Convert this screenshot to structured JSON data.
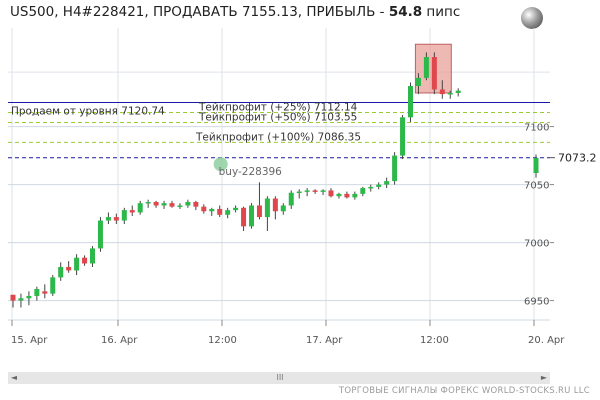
{
  "header": {
    "title_prefix": "US500, H4#228421, ПРОДАВАТЬ 7155.13, ПРИБЫЛЬ - ",
    "profit_value": "54.8",
    "profit_unit": " пипс"
  },
  "icons": {
    "globe": "globe-icon"
  },
  "colors": {
    "up": "#2db84a",
    "down": "#e0474c",
    "sell_line": "#1a1aa6",
    "tp_line": "#9acd32",
    "price_line": "#1a1aa6",
    "zone": "#e8a09a"
  },
  "chart_data": {
    "type": "candlestick",
    "symbol": "US500",
    "ylim": [
      6935,
      7185
    ],
    "x_labels": [
      "15. Apr",
      "16. Apr",
      "12:00",
      "17. Apr",
      "12:00",
      "20. Apr"
    ],
    "y_ticks": [
      7100,
      7050,
      7000,
      6950
    ],
    "sell_level": {
      "label": "Продаем от уровня 7120.74",
      "value": 7120.74
    },
    "take_profits": [
      {
        "label": "Тейкпрофит (+25%) 7112.14",
        "value": 7112.14
      },
      {
        "label": "Тейкпрофит (+50%) 7103.55",
        "value": 7103.55
      },
      {
        "label": "Тейкпрофит (+100%) 7086.35",
        "value": 7086.35
      }
    ],
    "current_price": {
      "label": "7073.2",
      "value": 7073.2
    },
    "marker": {
      "label": "buy-228396",
      "value": 7065
    },
    "candles": [
      [
        6955,
        6955,
        6944,
        6950
      ],
      [
        6950,
        6956,
        6944,
        6952
      ],
      [
        6952,
        6958,
        6946,
        6954
      ],
      [
        6954,
        6962,
        6950,
        6960
      ],
      [
        6958,
        6964,
        6952,
        6956
      ],
      [
        6956,
        6972,
        6954,
        6970
      ],
      [
        6970,
        6983,
        6967,
        6979
      ],
      [
        6979,
        6984,
        6974,
        6976
      ],
      [
        6976,
        6990,
        6972,
        6987
      ],
      [
        6987,
        6989,
        6980,
        6982
      ],
      [
        6982,
        6997,
        6979,
        6995
      ],
      [
        6995,
        7022,
        6992,
        7019
      ],
      [
        7019,
        7026,
        7016,
        7022
      ],
      [
        7022,
        7025,
        7016,
        7019
      ],
      [
        7019,
        7030,
        7016,
        7028
      ],
      [
        7028,
        7032,
        7023,
        7026
      ],
      [
        7026,
        7036,
        7024,
        7034
      ],
      [
        7034,
        7037,
        7030,
        7035
      ],
      [
        7035,
        7036,
        7030,
        7032
      ],
      [
        7032,
        7036,
        7029,
        7034
      ],
      [
        7034,
        7036,
        7030,
        7031
      ],
      [
        7031,
        7034,
        7029,
        7032
      ],
      [
        7032,
        7037,
        7030,
        7035
      ],
      [
        7035,
        7036,
        7028,
        7031
      ],
      [
        7031,
        7033,
        7025,
        7027
      ],
      [
        7027,
        7030,
        7023,
        7029
      ],
      [
        7029,
        7032,
        7022,
        7024
      ],
      [
        7024,
        7030,
        7021,
        7028
      ],
      [
        7028,
        7032,
        7026,
        7030
      ],
      [
        7030,
        7031,
        7010,
        7014
      ],
      [
        7014,
        7034,
        7012,
        7032
      ],
      [
        7032,
        7052,
        7020,
        7022
      ],
      [
        7022,
        7040,
        7010,
        7038
      ],
      [
        7038,
        7040,
        7020,
        7027
      ],
      [
        7027,
        7034,
        7024,
        7032
      ],
      [
        7032,
        7045,
        7029,
        7043
      ],
      [
        7043,
        7046,
        7038,
        7044
      ],
      [
        7044,
        7047,
        7040,
        7045
      ],
      [
        7045,
        7046,
        7042,
        7044
      ],
      [
        7044,
        7046,
        7041,
        7045
      ],
      [
        7045,
        7047,
        7039,
        7040
      ],
      [
        7040,
        7043,
        7038,
        7042
      ],
      [
        7042,
        7044,
        7038,
        7039
      ],
      [
        7039,
        7044,
        7037,
        7042
      ],
      [
        7042,
        7048,
        7040,
        7047
      ],
      [
        7047,
        7050,
        7044,
        7048
      ],
      [
        7048,
        7052,
        7046,
        7050
      ],
      [
        7050,
        7056,
        7047,
        7053
      ],
      [
        7053,
        7078,
        7050,
        7075
      ],
      [
        7075,
        7110,
        7072,
        7108
      ],
      [
        7108,
        7138,
        7104,
        7135
      ],
      [
        7135,
        7146,
        7128,
        7142
      ],
      [
        7142,
        7164,
        7140,
        7160
      ],
      [
        7160,
        7164,
        7128,
        7132
      ],
      [
        7132,
        7140,
        7124,
        7128
      ],
      [
        7128,
        7131,
        7124,
        7129
      ],
      [
        7129,
        7133,
        7126,
        7131
      ],
      [
        7060,
        7076,
        7056,
        7073
      ]
    ]
  },
  "scrollbar": {
    "thumb_label": "III",
    "left_label": "◄",
    "right_label": "►"
  },
  "footer": {
    "text": "ТОРГОВЫЕ СИГНАЛЫ ФОРЕКС WORLD-STOCKS.RU LLC"
  }
}
